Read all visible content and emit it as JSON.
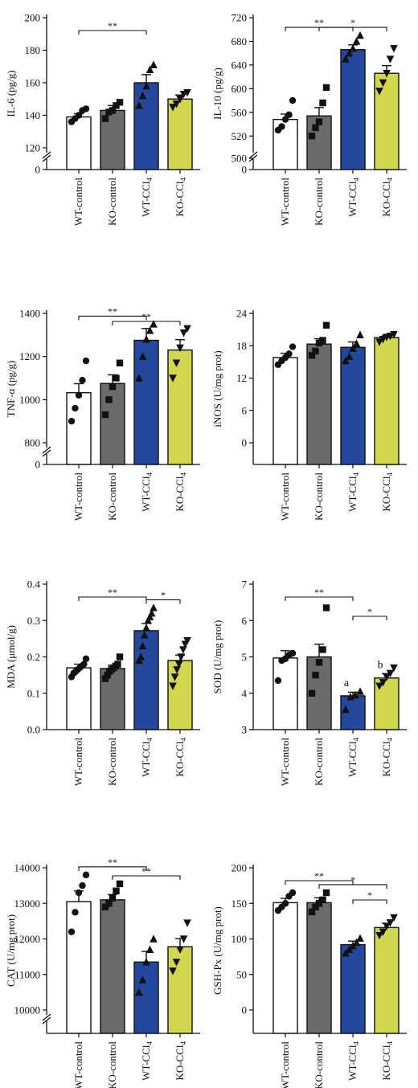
{
  "colors": {
    "WT-control": "#ffffff",
    "KO-control": "#6b6b6d",
    "WT-CCl4": "#24489c",
    "KO-CCl4": "#d1d84f",
    "axis": "#111111"
  },
  "groups": [
    "WT-control",
    "KO-control",
    "WT-CCl4",
    "KO-CCl4"
  ],
  "chart_data": [
    {
      "type": "bar",
      "ylabel": "IL-6 (pg/g)",
      "categories": [
        "WT-control",
        "KO-control",
        "WT-CCl4",
        "KO-CCl4"
      ],
      "values": [
        139,
        143,
        160,
        150
      ],
      "errors": [
        2,
        3,
        5,
        2.5
      ],
      "points": [
        [
          136,
          138,
          140,
          143,
          144
        ],
        [
          138,
          142,
          143,
          146,
          148
        ],
        [
          146,
          152,
          158,
          168,
          171
        ],
        [
          145,
          147,
          150,
          153,
          154
        ]
      ],
      "markers": [
        "circle",
        "square",
        "triangle",
        "triangle-down"
      ],
      "axis_break": true,
      "ybreak_ticks": [
        "0"
      ],
      "yticks": [
        120,
        140,
        160,
        180,
        200
      ],
      "ylim": [
        120,
        200
      ],
      "significance": [
        {
          "from": 0,
          "to": 2,
          "label": "**"
        }
      ],
      "annotations": []
    },
    {
      "type": "bar",
      "ylabel": "IL-10 (pg/g)",
      "categories": [
        "WT-control",
        "KO-control",
        "WT-CCl4",
        "KO-CCl4"
      ],
      "values": [
        548,
        554,
        666,
        626
      ],
      "errors": [
        9,
        14,
        8,
        13
      ],
      "points": [
        [
          530,
          536,
          548,
          556,
          580
        ],
        [
          520,
          534,
          544,
          576,
          602
        ],
        [
          650,
          660,
          668,
          680,
          690
        ],
        [
          596,
          610,
          626,
          650,
          668
        ]
      ],
      "markers": [
        "circle",
        "square",
        "triangle",
        "triangle-down"
      ],
      "axis_break": true,
      "ybreak_ticks": [
        "500",
        "0"
      ],
      "yticks": [
        520,
        560,
        600,
        640,
        680,
        720
      ],
      "ylim": [
        500,
        720
      ],
      "significance": [
        {
          "from": 0,
          "to": 2,
          "label": "**"
        },
        {
          "from": 1,
          "to": 3,
          "label": "*"
        }
      ],
      "annotations": []
    },
    {
      "type": "bar",
      "ylabel": "TNF-α (pg/g)",
      "categories": [
        "WT-control",
        "KO-control",
        "WT-CCl4",
        "KO-CCl4"
      ],
      "values": [
        1032,
        1075,
        1275,
        1230
      ],
      "errors": [
        42,
        40,
        55,
        48
      ],
      "points": [
        [
          900,
          960,
          1020,
          1090,
          1180
        ],
        [
          930,
          1000,
          1060,
          1100,
          1170
        ],
        [
          1100,
          1200,
          1280,
          1320,
          1350
        ],
        [
          1100,
          1170,
          1240,
          1310,
          1330
        ]
      ],
      "markers": [
        "circle",
        "square",
        "triangle",
        "triangle-down"
      ],
      "axis_break": true,
      "ybreak_ticks": [
        "0"
      ],
      "yticks": [
        800,
        1000,
        1200,
        1400
      ],
      "ylim": [
        800,
        1400
      ],
      "significance": [
        {
          "from": 0,
          "to": 2,
          "label": "**"
        },
        {
          "from": 1,
          "to": 3,
          "label": "**"
        }
      ],
      "annotations": []
    },
    {
      "type": "bar",
      "ylabel": "iNOS (U/mg prot)",
      "categories": [
        "WT-control",
        "KO-control",
        "WT-CCl4",
        "KO-CCl4"
      ],
      "values": [
        15.8,
        18.3,
        17.7,
        19.5
      ],
      "errors": [
        0.8,
        1.0,
        1.0,
        0.4
      ],
      "points": [
        [
          14.5,
          15.2,
          15.8,
          16.5,
          17.8
        ],
        [
          16.2,
          17.0,
          18.5,
          19.0,
          21.8
        ],
        [
          15.2,
          16.0,
          17.5,
          18.4,
          20.0
        ],
        [
          18.7,
          19.2,
          19.6,
          19.8,
          20.1
        ]
      ],
      "markers": [
        "circle",
        "square",
        "triangle",
        "triangle-down"
      ],
      "axis_break": false,
      "ybreak_ticks": [],
      "yticks": [
        0,
        6,
        12,
        18,
        24
      ],
      "ylim": [
        0,
        24
      ],
      "significance": [],
      "annotations": []
    },
    {
      "type": "bar",
      "ylabel": "MDA (μmol/g)",
      "categories": [
        "WT-control",
        "KO-control",
        "WT-CCl4",
        "KO-CCl4"
      ],
      "values": [
        0.17,
        0.168,
        0.272,
        0.19
      ],
      "errors": [
        0.01,
        0.009,
        0.02,
        0.015
      ],
      "points": [
        [
          0.145,
          0.155,
          0.16,
          0.165,
          0.17,
          0.175,
          0.18,
          0.195
        ],
        [
          0.14,
          0.15,
          0.16,
          0.165,
          0.17,
          0.175,
          0.18,
          0.2
        ],
        [
          0.19,
          0.2,
          0.23,
          0.26,
          0.28,
          0.3,
          0.31,
          0.32,
          0.335
        ],
        [
          0.12,
          0.145,
          0.165,
          0.18,
          0.2,
          0.22,
          0.235,
          0.245
        ]
      ],
      "markers": [
        "circle",
        "square",
        "triangle",
        "triangle-down"
      ],
      "axis_break": false,
      "ybreak_ticks": [],
      "yticks": [
        0.0,
        0.1,
        0.2,
        0.3,
        0.4
      ],
      "ytick_labels": [
        "0.0",
        "0.1",
        "0.2",
        "0.3",
        "0.4"
      ],
      "ylim": [
        0,
        0.4
      ],
      "significance": [
        {
          "from": 0,
          "to": 2,
          "label": "**"
        },
        {
          "from": 2,
          "to": 3,
          "label": "*"
        }
      ],
      "annotations": []
    },
    {
      "type": "bar",
      "ylabel": "SOD (U/mg prot)",
      "categories": [
        "WT-control",
        "KO-control",
        "WT-CCl4",
        "KO-CCl4"
      ],
      "values": [
        4.97,
        5.0,
        3.93,
        4.42
      ],
      "errors": [
        0.2,
        0.35,
        0.1,
        0.12
      ],
      "points": [
        [
          4.35,
          4.9,
          4.95,
          5.05,
          5.1
        ],
        [
          4.0,
          4.5,
          4.85,
          5.2,
          6.35
        ],
        [
          3.55,
          3.9,
          3.95,
          4.05
        ],
        [
          4.2,
          4.3,
          4.45,
          4.55,
          4.7
        ]
      ],
      "markers": [
        "circle",
        "square",
        "triangle",
        "triangle-down"
      ],
      "axis_break": true,
      "ybreak_ticks": [
        "3"
      ],
      "yticks": [
        3,
        4,
        5,
        6,
        7
      ],
      "ylim": [
        3,
        7
      ],
      "significance": [
        {
          "from": 0,
          "to": 2,
          "label": "**"
        },
        {
          "from": 2,
          "to": 3,
          "label": "*"
        }
      ],
      "annotations": [
        {
          "bar": 2,
          "text": "a"
        },
        {
          "bar": 3,
          "text": "b"
        }
      ]
    },
    {
      "type": "bar",
      "ylabel": "CAT (U/mg prot)",
      "categories": [
        "WT-control",
        "KO-control",
        "WT-CCl4",
        "KO-CCl4"
      ],
      "values": [
        13050,
        13100,
        11350,
        11780
      ],
      "errors": [
        300,
        150,
        300,
        230
      ],
      "points": [
        [
          12200,
          12750,
          13300,
          13500,
          13800
        ],
        [
          12900,
          13000,
          13150,
          13350,
          13550
        ],
        [
          10500,
          10850,
          11350,
          11700,
          12000
        ],
        [
          11100,
          11350,
          11700,
          12000,
          12450
        ]
      ],
      "markers": [
        "circle",
        "square",
        "triangle",
        "triangle-down"
      ],
      "axis_break": true,
      "ybreak_ticks": [],
      "yticks": [
        10000,
        11000,
        12000,
        13000,
        14000
      ],
      "ylim": [
        10000,
        14000
      ],
      "significance": [
        {
          "from": 0,
          "to": 2,
          "label": "**"
        },
        {
          "from": 1,
          "to": 3,
          "label": "**"
        }
      ],
      "annotations": []
    },
    {
      "type": "bar",
      "ylabel": "GSH-Px (U/mg prot)",
      "categories": [
        "WT-control",
        "KO-control",
        "WT-CCl4",
        "KO-CCl4"
      ],
      "values": [
        151,
        151,
        92,
        116
      ],
      "errors": [
        6,
        7,
        5,
        6
      ],
      "points": [
        [
          140,
          145,
          150,
          160,
          165
        ],
        [
          138,
          145,
          150,
          155,
          165
        ],
        [
          80,
          85,
          90,
          95,
          101
        ],
        [
          105,
          110,
          118,
          123,
          130
        ]
      ],
      "markers": [
        "circle",
        "square",
        "triangle",
        "triangle-down"
      ],
      "axis_break": false,
      "ybreak_ticks": [],
      "yticks": [
        0,
        50,
        100,
        150,
        200
      ],
      "ylim": [
        0,
        200
      ],
      "significance": [
        {
          "from": 0,
          "to": 2,
          "label": "**"
        },
        {
          "from": 1,
          "to": 3,
          "label": "*"
        },
        {
          "from": 2,
          "to": 3,
          "label": "*"
        }
      ],
      "annotations": []
    }
  ]
}
